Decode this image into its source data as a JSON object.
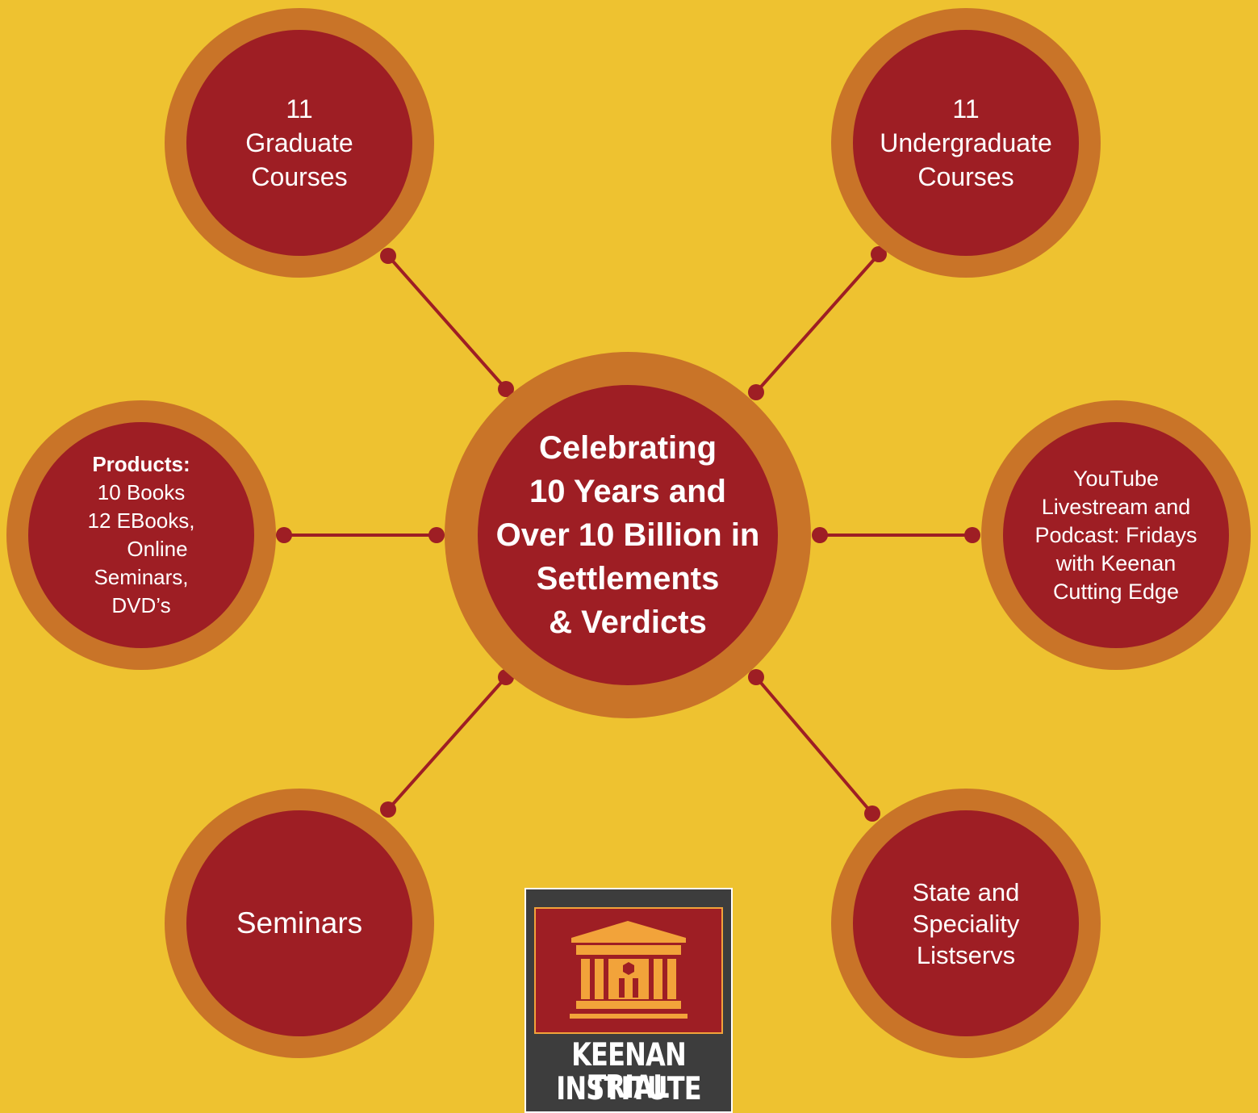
{
  "colors": {
    "background": "#EEC230",
    "ring": "#C97428",
    "node": "#9E1E24",
    "connector": "#9E1E24",
    "text": "#FFFFFF",
    "logo_dark": "#3D3D3D",
    "logo_building": "#F2A33A"
  },
  "center": {
    "lines": [
      "Celebrating",
      "10 Years and",
      "Over 10 Billion in",
      "Settlements",
      "& Verdicts"
    ]
  },
  "nodes": {
    "graduate": {
      "lines": [
        "11",
        "Graduate",
        "Courses"
      ]
    },
    "undergraduate": {
      "lines": [
        "11",
        "Undergraduate",
        "Courses"
      ]
    },
    "products": {
      "heading": "Products:",
      "lines": [
        "10 Books",
        "12 EBooks,",
        "Online",
        "Seminars,",
        "DVD’s"
      ]
    },
    "youtube": {
      "lines": [
        "YouTube",
        "Livestream and",
        "Podcast: Fridays",
        "with Keenan",
        "Cutting Edge"
      ]
    },
    "seminars": {
      "lines": [
        "Seminars"
      ]
    },
    "listservs": {
      "lines": [
        "State and",
        "Speciality",
        "Listservs"
      ]
    }
  },
  "logo": {
    "icon": "courthouse-icon",
    "line1": "KEENAN TRIAL",
    "line2": "INSTITUTE"
  }
}
